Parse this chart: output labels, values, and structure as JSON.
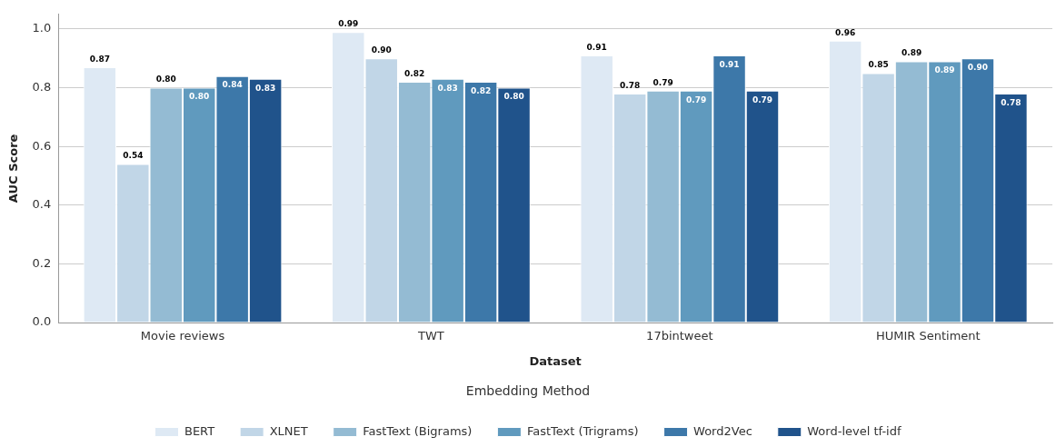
{
  "chart_data": {
    "type": "bar",
    "xlabel": "Dataset",
    "ylabel": "AUC Score",
    "legend_title": "Embedding Method",
    "categories": [
      "Movie reviews",
      "TWT",
      "17bintweet",
      "HUMIR Sentiment"
    ],
    "series": [
      {
        "name": "BERT",
        "color": "#dee9f4",
        "values": [
          0.87,
          0.99,
          0.91,
          0.96
        ],
        "value_labels": [
          "0.87",
          "0.99",
          "0.91",
          "0.96"
        ]
      },
      {
        "name": "XLNET",
        "color": "#c1d6e7",
        "values": [
          0.54,
          0.9,
          0.78,
          0.85
        ],
        "value_labels": [
          "0.54",
          "0.90",
          "0.78",
          "0.85"
        ]
      },
      {
        "name": "FastText (Bigrams)",
        "color": "#94bbd3",
        "values": [
          0.8,
          0.82,
          0.79,
          0.89
        ],
        "value_labels": [
          "0.80",
          "0.82",
          "0.79",
          "0.89"
        ]
      },
      {
        "name": "FastText (Trigrams)",
        "color": "#609abe",
        "values": [
          0.8,
          0.83,
          0.79,
          0.89
        ],
        "value_labels": [
          "0.80",
          "0.83",
          "0.79",
          "0.89"
        ]
      },
      {
        "name": "Word2Vec",
        "color": "#3d78a9",
        "values": [
          0.84,
          0.82,
          0.91,
          0.9
        ],
        "value_labels": [
          "0.84",
          "0.82",
          "0.91",
          "0.90"
        ]
      },
      {
        "name": "Word-level tf-idf",
        "color": "#20538b",
        "values": [
          0.83,
          0.8,
          0.79,
          0.78
        ],
        "value_labels": [
          "0.83",
          "0.80",
          "0.79",
          "0.78"
        ]
      }
    ],
    "ylim": [
      0,
      1.05
    ],
    "yticks": [
      {
        "value": 0,
        "label": "0.0"
      },
      {
        "value": 0.2,
        "label": "0.2"
      },
      {
        "value": 0.4,
        "label": "0.4"
      },
      {
        "value": 0.6,
        "label": "0.6"
      },
      {
        "value": 0.8,
        "label": "0.8"
      },
      {
        "value": 1.0,
        "label": "1.0"
      }
    ],
    "grid": "y",
    "legend": "bottom"
  }
}
